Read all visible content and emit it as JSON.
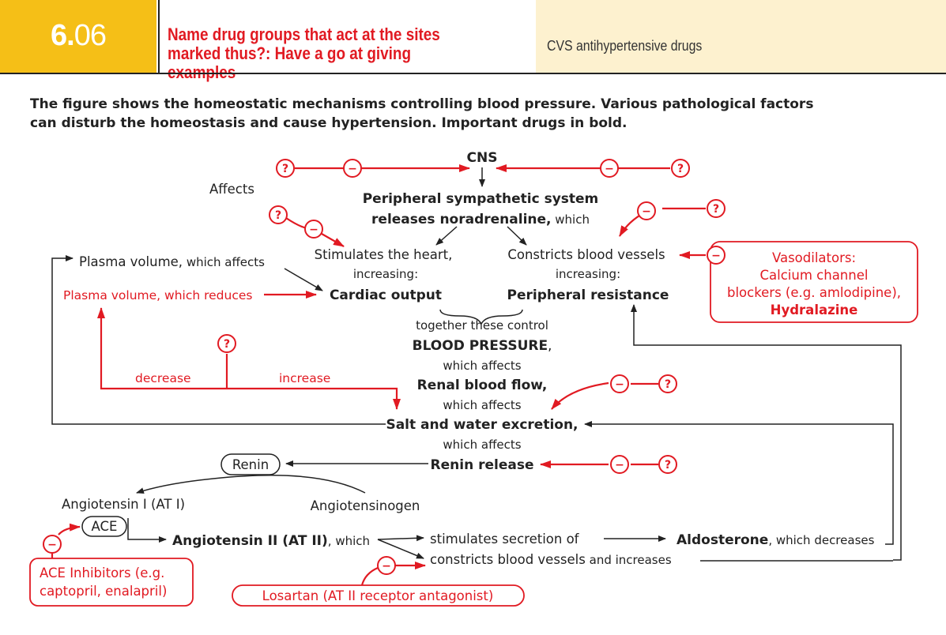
{
  "header": {
    "number_major": "6.",
    "number_minor": "06",
    "question_line1": "Name drug groups that act at the sites",
    "question_line2": "marked thus?: Have a go at giving examples",
    "topic": "CVS antihypertensive drugs"
  },
  "intro_line1": "The figure shows the homeostatic mechanisms controlling blood pressure. Various pathological factors",
  "intro_line2": "can disturb the homeostasis and cause hypertension. Important drugs in bold.",
  "symbols": {
    "question": "?",
    "inhibit": "−"
  },
  "colors": {
    "accent_red": "#e11a22",
    "header_yellow": "#f5bf17",
    "topic_bg": "#fdf1cf"
  },
  "diagram": {
    "cns": "CNS",
    "affects": "Affects",
    "sympathetic_line1": "Peripheral sympathetic system",
    "sympathetic_line2": "releases noradrenaline,",
    "sympathetic_which": " which",
    "stimulates_heart": "Stimulates the heart,",
    "increasing_1": "increasing:",
    "cardiac_output": "Cardiac output",
    "constricts_vessels": "Constricts blood vessels",
    "increasing_2": "increasing:",
    "peripheral_resistance": "Peripheral resistance",
    "plasma_volume": "Plasma volume,",
    "plasma_volume_which": " which affects",
    "plasma_reduces": "Plasma volume, which reduces",
    "together": "together these control",
    "blood_pressure": "BLOOD PRESSURE",
    "bp_comma": ",",
    "which_affects_1": "which affects",
    "renal_flow": "Renal blood flow,",
    "which_affects_2": "which affects",
    "salt_water": "Salt and water excretion,",
    "which_affects_3": "which affects",
    "renin_release": "Renin release",
    "renin": "Renin",
    "decrease": "decrease",
    "increase": "increase",
    "angiotensinogen": "Angiotensinogen",
    "angiotensin1": "Angiotensin I (AT I)",
    "ace": "ACE",
    "angiotensin2": "Angiotensin II (AT II)",
    "angiotensin2_which": ", which",
    "stimulates_secretion": "stimulates secretion of",
    "aldosterone": "Aldosterone",
    "aldosterone_which": ", which decreases",
    "constricts_increases": "constricts blood vessels",
    "and_increases": " and increases",
    "vasodilators_1": "Vasodilators:",
    "vasodilators_2": "Calcium channel",
    "vasodilators_3": "blockers (e.g. amlodipine),",
    "hydralazine": "Hydralazine",
    "ace_inhib_1": "ACE Inhibitors (e.g.",
    "ace_inhib_2": "captopril, enalapril)",
    "losartan": "Losartan (AT II receptor antagonist)"
  }
}
